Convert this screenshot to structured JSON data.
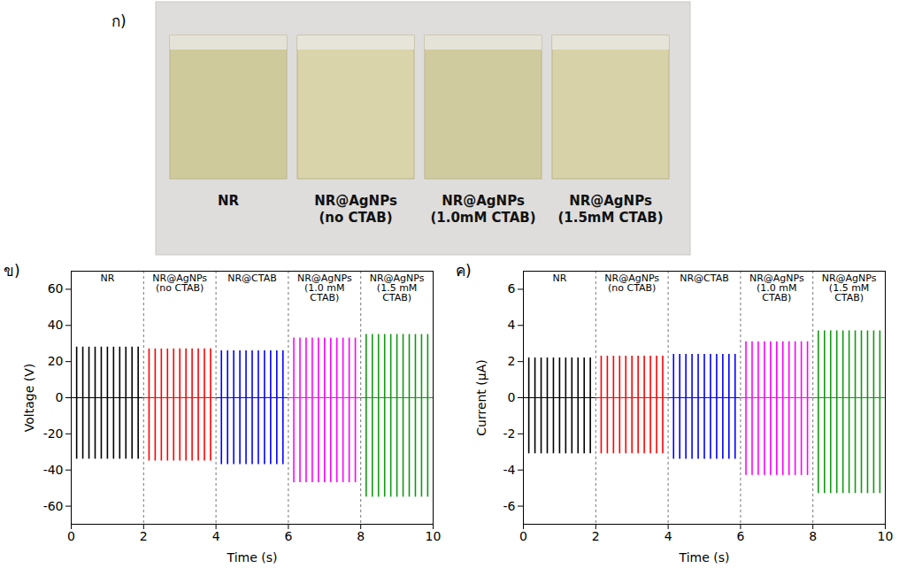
{
  "photo": {
    "letter": "ก)",
    "labels": [
      "NR",
      "NR@AgNPs (no CTAB)",
      "NR@AgNPs (1.0mM CTAB)",
      "NR@AgNPs (1.5mM CTAB)"
    ]
  },
  "chart_data": [
    {
      "type": "spike",
      "letter": "ข)",
      "xlabel": "Time (s)",
      "ylabel": "Voltage (V)",
      "xlim": [
        0,
        10
      ],
      "xticks": [
        0,
        2,
        4,
        6,
        8,
        10
      ],
      "ylim": [
        -70,
        70
      ],
      "yticks": [
        -60,
        -40,
        -20,
        0,
        20,
        40,
        60
      ],
      "grid": false,
      "baseline": 0,
      "dividers": [
        2,
        4,
        6,
        8
      ],
      "series": [
        {
          "name": "NR",
          "color": "#000000",
          "x": [
            0.15,
            0.32,
            0.49,
            0.66,
            0.83,
            1.0,
            1.17,
            1.34,
            1.51,
            1.68,
            1.85
          ],
          "high": [
            28,
            28,
            28,
            28,
            28,
            28,
            28,
            28,
            28,
            28,
            28
          ],
          "low": [
            -34,
            -34,
            -34,
            -34,
            -34,
            -34,
            -34,
            -34,
            -34,
            -34,
            -34
          ]
        },
        {
          "name": "NR@AgNPs (no CTAB)",
          "color": "#ff0000",
          "x": [
            2.15,
            2.32,
            2.49,
            2.66,
            2.83,
            3.0,
            3.17,
            3.34,
            3.51,
            3.68,
            3.85
          ],
          "high": [
            27,
            27,
            27,
            27,
            27,
            27,
            27,
            27,
            27,
            27,
            27
          ],
          "low": [
            -35,
            -35,
            -35,
            -35,
            -35,
            -35,
            -35,
            -35,
            -35,
            -35,
            -35
          ]
        },
        {
          "name": "NR@CTAB",
          "color": "#0000ff",
          "x": [
            4.15,
            4.32,
            4.49,
            4.66,
            4.83,
            5.0,
            5.17,
            5.34,
            5.51,
            5.68,
            5.85
          ],
          "high": [
            26,
            26,
            26,
            26,
            26,
            26,
            26,
            26,
            26,
            26,
            26
          ],
          "low": [
            -37,
            -37,
            -37,
            -37,
            -37,
            -37,
            -37,
            -37,
            -37,
            -37,
            -37
          ]
        },
        {
          "name": "NR@AgNPs (1.0 mM CTAB)",
          "color": "#ff00ff",
          "x": [
            6.15,
            6.32,
            6.49,
            6.66,
            6.83,
            7.0,
            7.17,
            7.34,
            7.51,
            7.68,
            7.85
          ],
          "high": [
            33,
            33,
            33,
            33,
            33,
            33,
            33,
            33,
            33,
            33,
            33
          ],
          "low": [
            -47,
            -47,
            -47,
            -47,
            -47,
            -47,
            -47,
            -47,
            -47,
            -47,
            -47
          ]
        },
        {
          "name": "NR@AgNPs (1.5 mM CTAB)",
          "color": "#119911",
          "x": [
            8.15,
            8.32,
            8.49,
            8.66,
            8.83,
            9.0,
            9.17,
            9.34,
            9.51,
            9.68,
            9.85
          ],
          "high": [
            35,
            35,
            35,
            35,
            35,
            35,
            35,
            35,
            35,
            35,
            35
          ],
          "low": [
            -55,
            -55,
            -55,
            -55,
            -55,
            -55,
            -55,
            -55,
            -55,
            -55,
            -55
          ]
        }
      ]
    },
    {
      "type": "spike",
      "letter": "ค)",
      "xlabel": "Time (s)",
      "ylabel": "Current (µA)",
      "xlim": [
        0,
        10
      ],
      "xticks": [
        0,
        2,
        4,
        6,
        8,
        10
      ],
      "ylim": [
        -7,
        7
      ],
      "yticks": [
        -6,
        -4,
        -2,
        0,
        2,
        4,
        6
      ],
      "grid": false,
      "baseline": 0,
      "dividers": [
        2,
        4,
        6,
        8
      ],
      "series": [
        {
          "name": "NR",
          "color": "#000000",
          "x": [
            0.15,
            0.32,
            0.49,
            0.66,
            0.83,
            1.0,
            1.17,
            1.34,
            1.51,
            1.68,
            1.85
          ],
          "high": [
            2.2,
            2.2,
            2.2,
            2.2,
            2.2,
            2.2,
            2.2,
            2.2,
            2.2,
            2.2,
            2.2
          ],
          "low": [
            -3.1,
            -3.1,
            -3.1,
            -3.1,
            -3.1,
            -3.1,
            -3.1,
            -3.1,
            -3.1,
            -3.1,
            -3.1
          ]
        },
        {
          "name": "NR@AgNPs (no CTAB)",
          "color": "#ff0000",
          "x": [
            2.15,
            2.32,
            2.49,
            2.66,
            2.83,
            3.0,
            3.17,
            3.34,
            3.51,
            3.68,
            3.85
          ],
          "high": [
            2.3,
            2.3,
            2.3,
            2.3,
            2.3,
            2.3,
            2.3,
            2.3,
            2.3,
            2.3,
            2.3
          ],
          "low": [
            -3.1,
            -3.1,
            -3.1,
            -3.1,
            -3.1,
            -3.1,
            -3.1,
            -3.1,
            -3.1,
            -3.1,
            -3.1
          ]
        },
        {
          "name": "NR@CTAB",
          "color": "#0000ff",
          "x": [
            4.15,
            4.32,
            4.49,
            4.66,
            4.83,
            5.0,
            5.17,
            5.34,
            5.51,
            5.68,
            5.85
          ],
          "high": [
            2.4,
            2.4,
            2.4,
            2.4,
            2.4,
            2.4,
            2.4,
            2.4,
            2.4,
            2.4,
            2.4
          ],
          "low": [
            -3.4,
            -3.4,
            -3.4,
            -3.4,
            -3.4,
            -3.4,
            -3.4,
            -3.4,
            -3.4,
            -3.4,
            -3.4
          ]
        },
        {
          "name": "NR@AgNPs (1.0 mM CTAB)",
          "color": "#ff00ff",
          "x": [
            6.15,
            6.32,
            6.49,
            6.66,
            6.83,
            7.0,
            7.17,
            7.34,
            7.51,
            7.68,
            7.85
          ],
          "high": [
            3.1,
            3.1,
            3.1,
            3.1,
            3.1,
            3.1,
            3.1,
            3.1,
            3.1,
            3.1,
            3.1
          ],
          "low": [
            -4.3,
            -4.3,
            -4.3,
            -4.3,
            -4.3,
            -4.3,
            -4.3,
            -4.3,
            -4.3,
            -4.3,
            -4.3
          ]
        },
        {
          "name": "NR@AgNPs (1.5 mM CTAB)",
          "color": "#119911",
          "x": [
            8.15,
            8.32,
            8.49,
            8.66,
            8.83,
            9.0,
            9.17,
            9.34,
            9.51,
            9.68,
            9.85
          ],
          "high": [
            3.7,
            3.7,
            3.7,
            3.7,
            3.7,
            3.7,
            3.7,
            3.7,
            3.7,
            3.7,
            3.7
          ],
          "low": [
            -5.3,
            -5.3,
            -5.3,
            -5.3,
            -5.3,
            -5.3,
            -5.3,
            -5.3,
            -5.3,
            -5.3,
            -5.3
          ]
        }
      ]
    }
  ]
}
